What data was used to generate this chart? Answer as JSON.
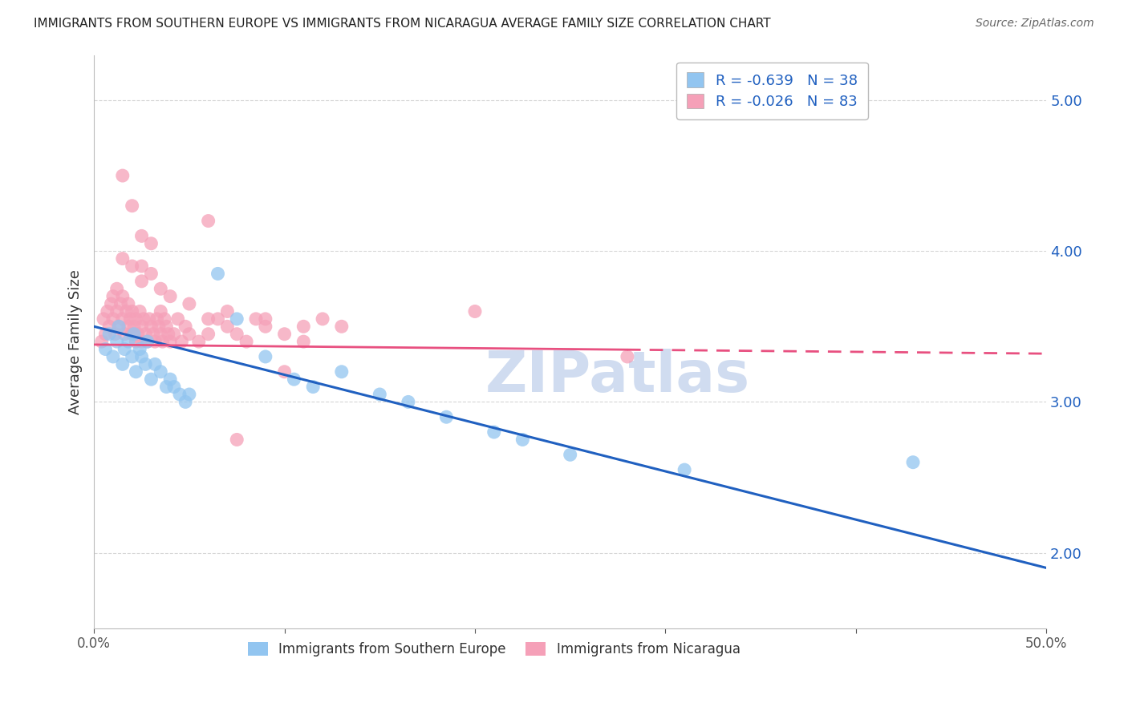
{
  "title": "IMMIGRANTS FROM SOUTHERN EUROPE VS IMMIGRANTS FROM NICARAGUA AVERAGE FAMILY SIZE CORRELATION CHART",
  "source": "Source: ZipAtlas.com",
  "ylabel": "Average Family Size",
  "xlim": [
    0.0,
    0.5
  ],
  "ylim": [
    1.5,
    5.3
  ],
  "yticks": [
    2.0,
    3.0,
    4.0,
    5.0
  ],
  "xticks": [
    0.0,
    0.1,
    0.2,
    0.3,
    0.4,
    0.5
  ],
  "xtick_labels": [
    "0.0%",
    "",
    "",
    "",
    "",
    "50.0%"
  ],
  "legend_blue_label": "R = -0.639   N = 38",
  "legend_pink_label": "R = -0.026   N = 83",
  "legend_blue_series": "Immigrants from Southern Europe",
  "legend_pink_series": "Immigrants from Nicaragua",
  "blue_color": "#92C5F0",
  "pink_color": "#F5A0B8",
  "blue_line_color": "#2060C0",
  "pink_line_color": "#E85080",
  "background_color": "#FFFFFF",
  "grid_color": "#CCCCCC",
  "blue_x": [
    0.006,
    0.008,
    0.01,
    0.012,
    0.013,
    0.015,
    0.016,
    0.018,
    0.02,
    0.021,
    0.022,
    0.024,
    0.025,
    0.027,
    0.028,
    0.03,
    0.032,
    0.035,
    0.038,
    0.04,
    0.042,
    0.045,
    0.048,
    0.05,
    0.065,
    0.075,
    0.09,
    0.105,
    0.115,
    0.13,
    0.15,
    0.165,
    0.185,
    0.21,
    0.225,
    0.25,
    0.31,
    0.43
  ],
  "blue_y": [
    3.35,
    3.45,
    3.3,
    3.4,
    3.5,
    3.25,
    3.35,
    3.4,
    3.3,
    3.45,
    3.2,
    3.35,
    3.3,
    3.25,
    3.4,
    3.15,
    3.25,
    3.2,
    3.1,
    3.15,
    3.1,
    3.05,
    3.0,
    3.05,
    3.85,
    3.55,
    3.3,
    3.15,
    3.1,
    3.2,
    3.05,
    3.0,
    2.9,
    2.8,
    2.75,
    2.65,
    2.55,
    2.6
  ],
  "pink_x": [
    0.004,
    0.005,
    0.006,
    0.007,
    0.008,
    0.009,
    0.01,
    0.01,
    0.011,
    0.012,
    0.012,
    0.013,
    0.014,
    0.015,
    0.015,
    0.016,
    0.017,
    0.018,
    0.018,
    0.019,
    0.02,
    0.02,
    0.021,
    0.022,
    0.022,
    0.023,
    0.024,
    0.025,
    0.025,
    0.026,
    0.027,
    0.028,
    0.029,
    0.03,
    0.031,
    0.032,
    0.033,
    0.034,
    0.035,
    0.036,
    0.037,
    0.038,
    0.039,
    0.04,
    0.042,
    0.044,
    0.046,
    0.048,
    0.05,
    0.055,
    0.06,
    0.065,
    0.07,
    0.075,
    0.08,
    0.085,
    0.09,
    0.1,
    0.11,
    0.12,
    0.02,
    0.025,
    0.03,
    0.035,
    0.04,
    0.05,
    0.06,
    0.07,
    0.09,
    0.11,
    0.015,
    0.02,
    0.025,
    0.03,
    0.015,
    0.025,
    0.035,
    0.06,
    0.13,
    0.2,
    0.075,
    0.1,
    0.28
  ],
  "pink_y": [
    3.4,
    3.55,
    3.45,
    3.6,
    3.5,
    3.65,
    3.55,
    3.7,
    3.45,
    3.6,
    3.75,
    3.5,
    3.65,
    3.55,
    3.7,
    3.45,
    3.6,
    3.5,
    3.65,
    3.55,
    3.45,
    3.6,
    3.5,
    3.4,
    3.55,
    3.45,
    3.6,
    3.5,
    3.4,
    3.55,
    3.45,
    3.4,
    3.55,
    3.5,
    3.45,
    3.4,
    3.55,
    3.5,
    3.45,
    3.4,
    3.55,
    3.5,
    3.45,
    3.4,
    3.45,
    3.55,
    3.4,
    3.5,
    3.45,
    3.4,
    3.45,
    3.55,
    3.5,
    3.45,
    3.4,
    3.55,
    3.5,
    3.45,
    3.4,
    3.55,
    3.9,
    3.8,
    3.85,
    3.75,
    3.7,
    3.65,
    4.2,
    3.6,
    3.55,
    3.5,
    4.5,
    4.3,
    4.1,
    4.05,
    3.95,
    3.9,
    3.6,
    3.55,
    3.5,
    3.6,
    2.75,
    3.2,
    3.3
  ],
  "blue_trend_x0": 0.0,
  "blue_trend_y0": 3.5,
  "blue_trend_x1": 0.5,
  "blue_trend_y1": 1.9,
  "pink_trend_x0": 0.0,
  "pink_trend_y0": 3.38,
  "pink_trend_x1": 0.5,
  "pink_trend_y1": 3.32,
  "watermark": "ZIPatlas",
  "watermark_color": "#D0DCF0",
  "title_fontsize": 11,
  "axis_label_fontsize": 13,
  "tick_fontsize": 12,
  "legend_fontsize": 13
}
